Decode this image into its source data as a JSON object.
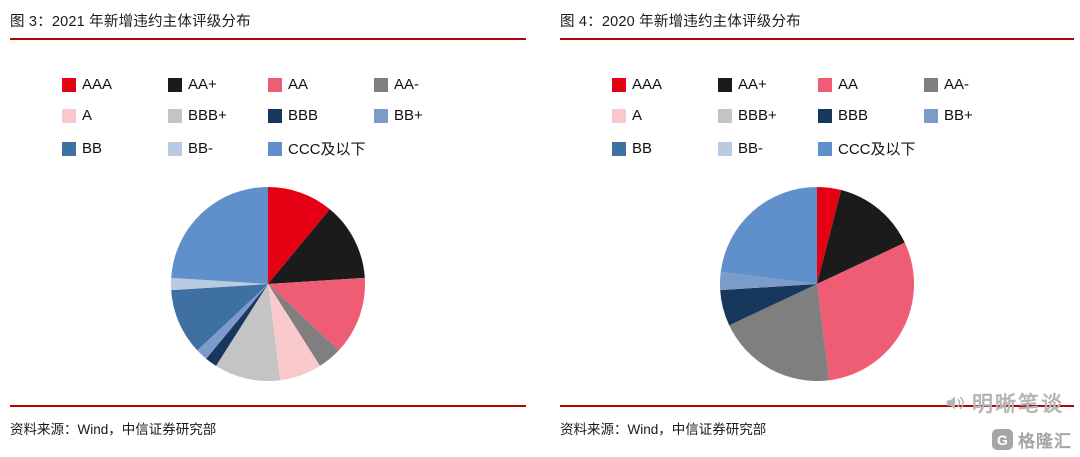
{
  "page": {
    "background": "#ffffff",
    "accent_rule_color": "#b30303"
  },
  "watermarks": {
    "mingxi": "明晰笔谈",
    "gelonghui": "格隆汇",
    "gelonghui_badge": "G"
  },
  "chart_data": [
    {
      "type": "pie",
      "title": "图 3：2021 年新增违约主体评级分布",
      "source": "资料来源：Wind，中信证券研究部",
      "legend_position": "top",
      "start_angle": "12-oclock, clockwise",
      "labels": [
        "AAA",
        "AA+",
        "AA",
        "AA-",
        "A",
        "BBB+",
        "BBB",
        "BB+",
        "BB",
        "BB-",
        "CCC及以下"
      ],
      "values_pct": [
        11,
        13,
        13,
        4,
        7,
        11,
        2,
        2,
        11,
        2,
        24
      ],
      "colors": [
        "#e60013",
        "#1b1b1b",
        "#ef5d75",
        "#7f7f7f",
        "#fac9cb",
        "#c4c4c4",
        "#17375d",
        "#7b9bc8",
        "#3e70a2",
        "#b9cbe2",
        "#6090cc"
      ]
    },
    {
      "type": "pie",
      "title": "图 4：2020 年新增违约主体评级分布",
      "source": "资料来源：Wind，中信证券研究部",
      "legend_position": "top",
      "start_angle": "12-oclock, clockwise",
      "labels": [
        "AAA",
        "AA+",
        "AA",
        "AA-",
        "A",
        "BBB+",
        "BBB",
        "BB+",
        "BB",
        "BB-",
        "CCC及以下"
      ],
      "values_pct": [
        4,
        14,
        30,
        20,
        0,
        0,
        6,
        3,
        0,
        0,
        23
      ],
      "colors": [
        "#e60013",
        "#1b1b1b",
        "#ef5d75",
        "#7f7f7f",
        "#fac9cb",
        "#c4c4c4",
        "#17375d",
        "#7b9bc8",
        "#3e70a2",
        "#b9cbe2",
        "#6090cc"
      ]
    }
  ]
}
